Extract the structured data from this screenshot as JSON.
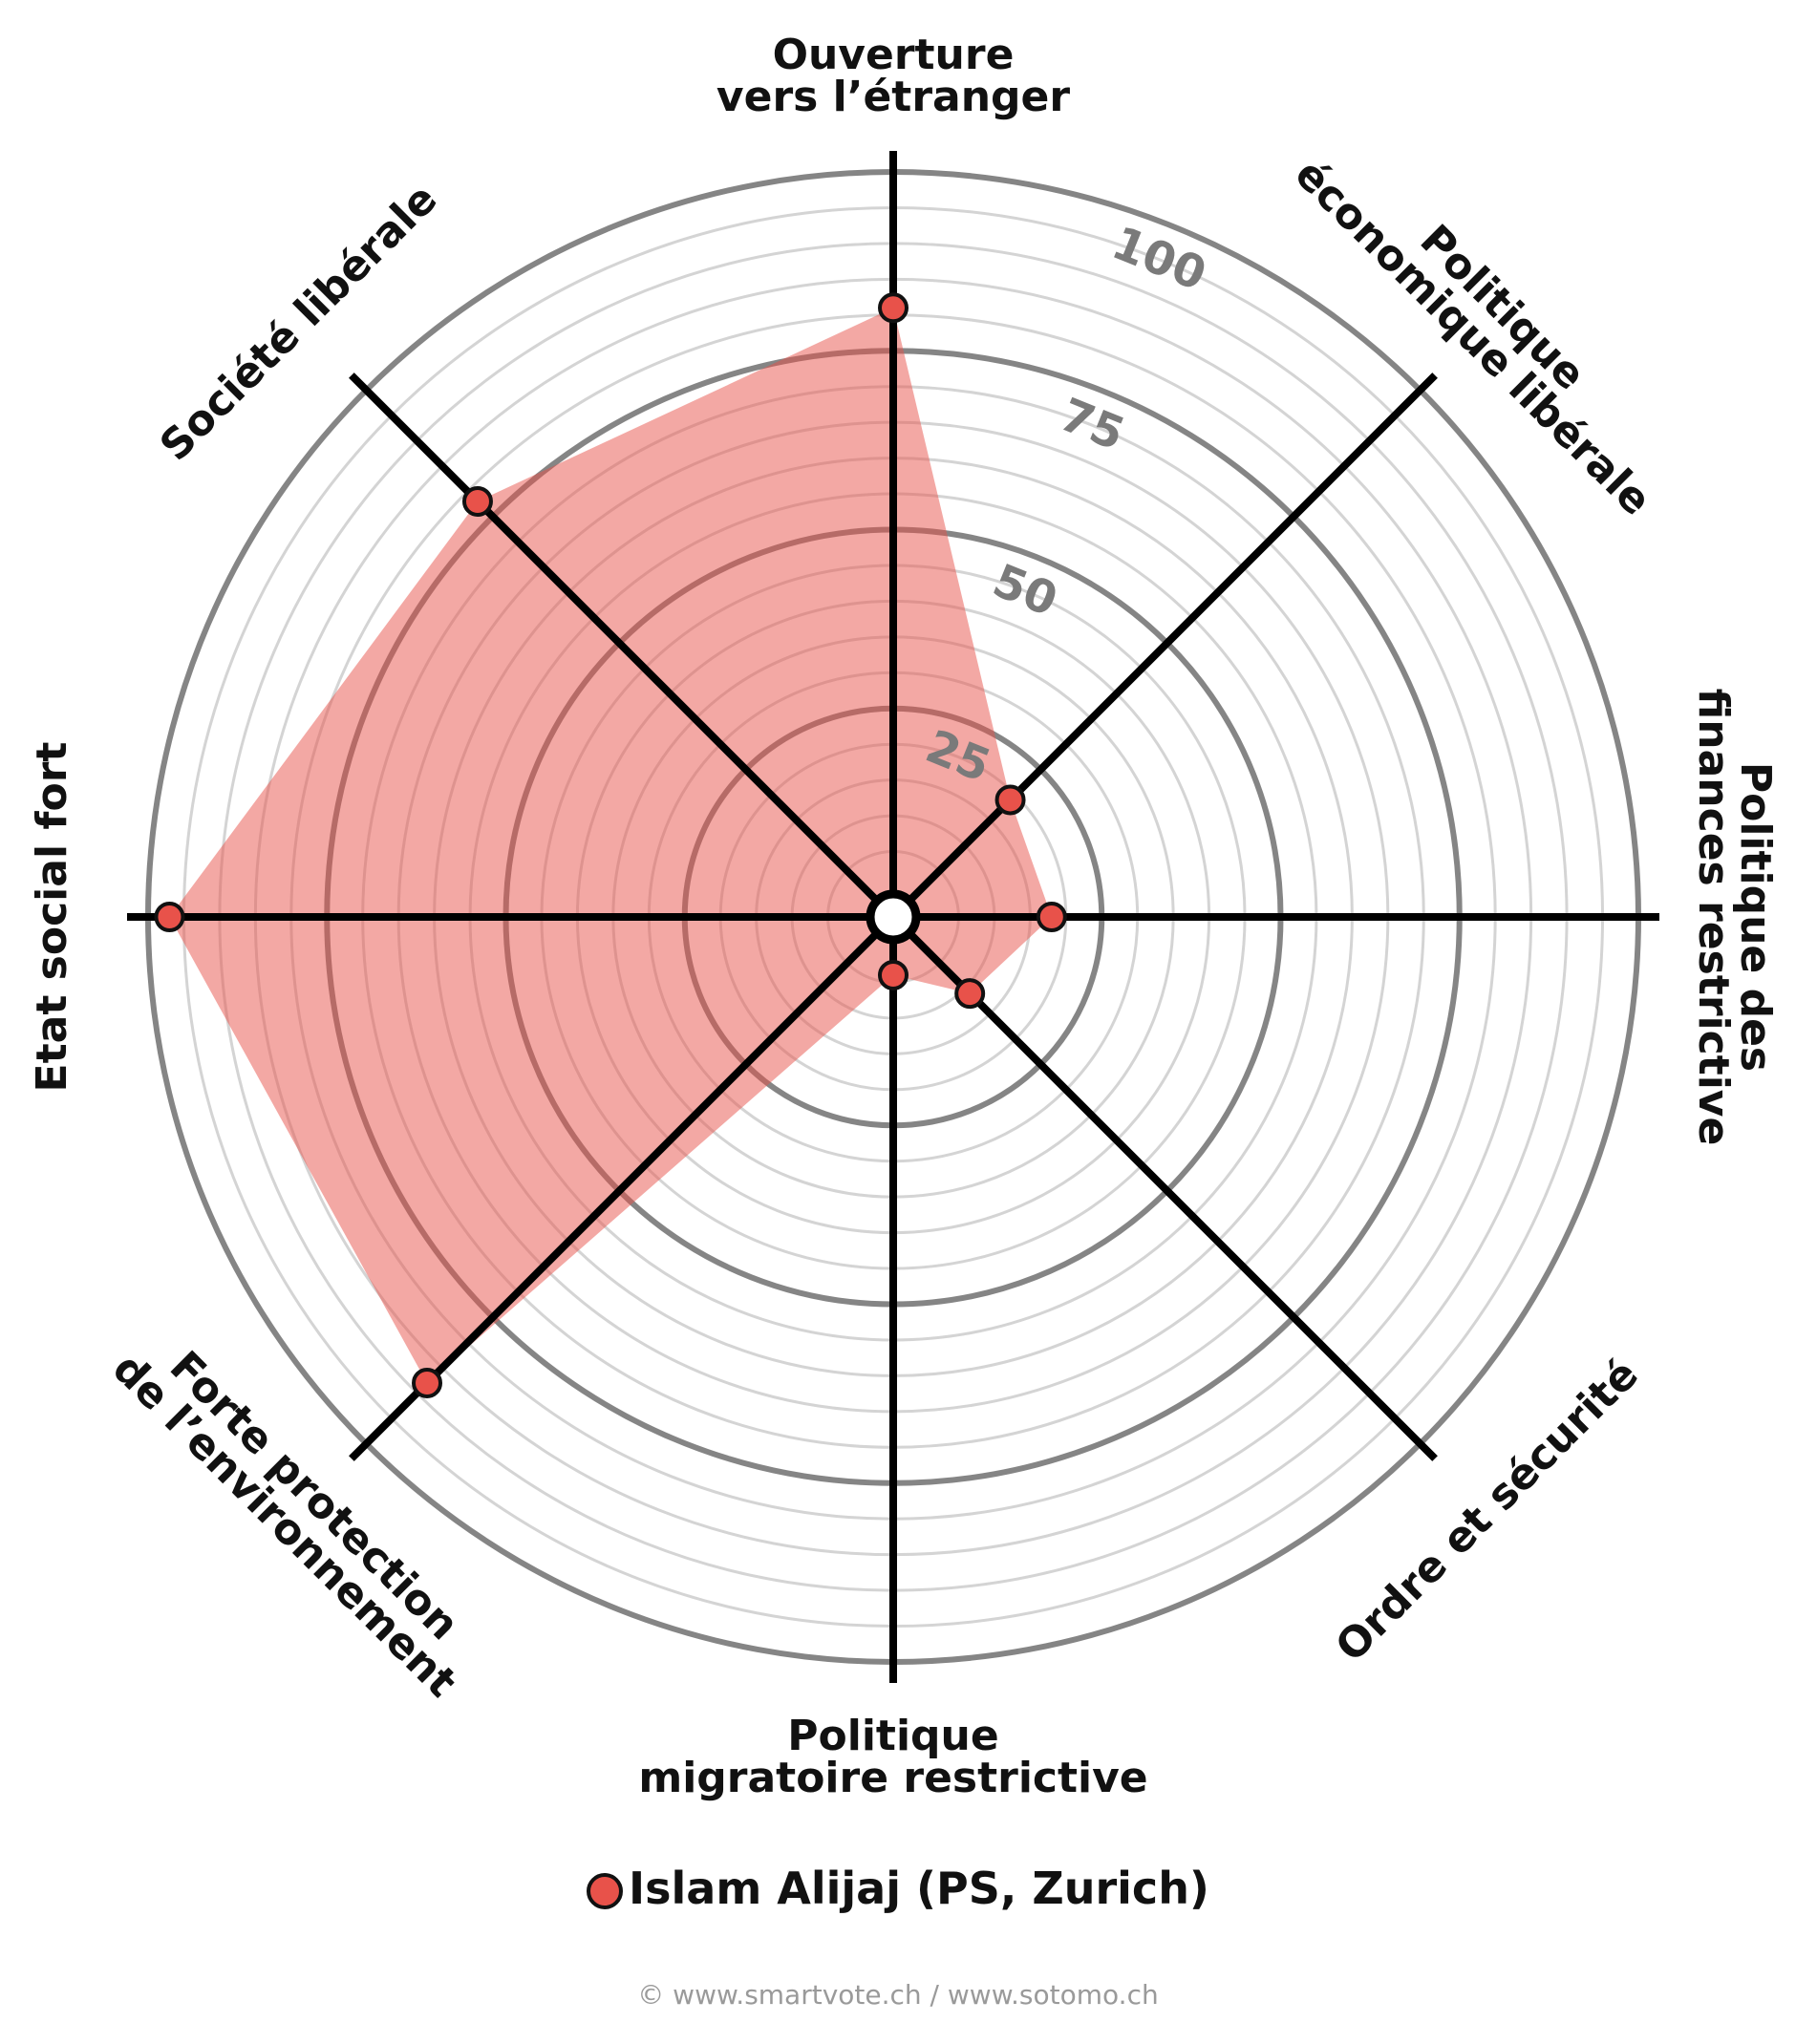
{
  "chart_data": {
    "type": "radar",
    "categories": [
      "Ouverture\nvers l’étranger",
      "Politique\néconomique libérale",
      "Politique des\nfinances restrictive",
      "Ordre et sécurité",
      "Politique\nmigratoire restrictive",
      "Forte protection\nde l’environnement",
      "Etat social fort",
      "Société libérale"
    ],
    "series": [
      {
        "name": "Islam Alijaj (PS, Zurich)",
        "color": "#e8524a",
        "values": [
          81,
          19,
          18,
          11,
          4,
          88,
          97,
          78
        ]
      }
    ],
    "rlim": [
      0,
      100
    ],
    "rticks": [
      25,
      50,
      75,
      100
    ],
    "minor_grid": [
      5,
      10,
      15,
      20,
      30,
      35,
      40,
      45,
      55,
      60,
      65,
      70,
      80,
      85,
      90,
      95
    ],
    "legend": "bottom",
    "source": "© www.smartvote.ch / www.sotomo.ch"
  }
}
